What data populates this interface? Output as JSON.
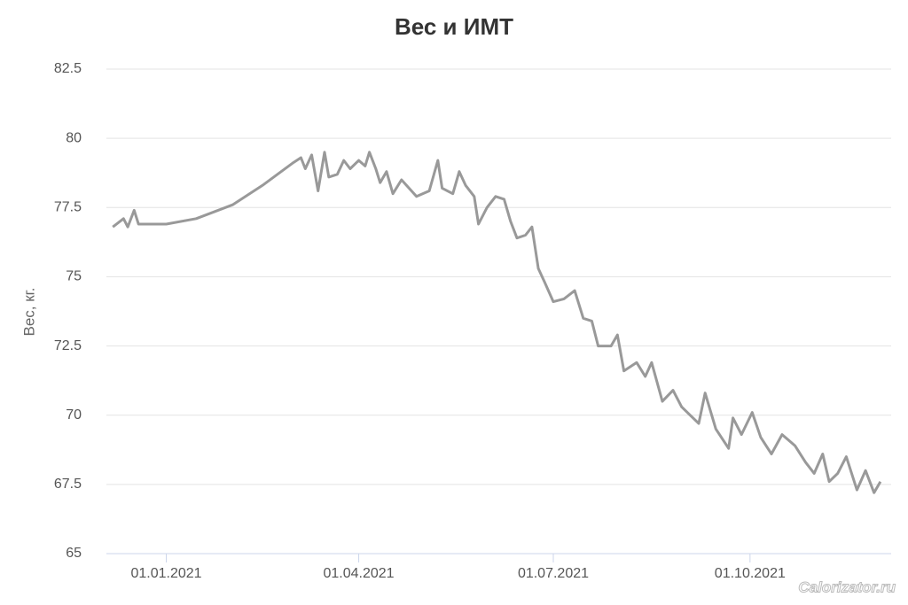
{
  "chart_data": {
    "type": "line",
    "title": "Вес и ИМТ",
    "y_label": "Вес, кг.",
    "watermark": "Calorizator.ru",
    "x": [
      "07.12.2020",
      "12.12.2020",
      "14.12.2020",
      "17.12.2020",
      "19.12.2020",
      "01.01.2021",
      "15.01.2021",
      "01.02.2021",
      "15.02.2021",
      "01.03.2021",
      "05.03.2021",
      "07.03.2021",
      "10.03.2021",
      "13.03.2021",
      "16.03.2021",
      "18.03.2021",
      "22.03.2021",
      "25.03.2021",
      "28.03.2021",
      "01.04.2021",
      "04.04.2021",
      "06.04.2021",
      "09.04.2021",
      "11.04.2021",
      "14.04.2021",
      "17.04.2021",
      "21.04.2021",
      "28.04.2021",
      "04.05.2021",
      "08.05.2021",
      "10.05.2021",
      "15.05.2021",
      "18.05.2021",
      "21.05.2021",
      "25.05.2021",
      "27.05.2021",
      "31.05.2021",
      "04.06.2021",
      "08.06.2021",
      "11.06.2021",
      "14.06.2021",
      "18.06.2021",
      "21.06.2021",
      "24.06.2021",
      "27.06.2021",
      "01.07.2021",
      "06.07.2021",
      "11.07.2021",
      "15.07.2021",
      "19.07.2021",
      "22.07.2021",
      "28.07.2021",
      "31.07.2021",
      "03.08.2021",
      "09.08.2021",
      "13.08.2021",
      "16.08.2021",
      "21.08.2021",
      "26.08.2021",
      "30.08.2021",
      "03.09.2021",
      "07.09.2021",
      "10.09.2021",
      "15.09.2021",
      "21.09.2021",
      "23.09.2021",
      "27.09.2021",
      "02.10.2021",
      "06.10.2021",
      "11.10.2021",
      "16.10.2021",
      "22.10.2021",
      "27.10.2021",
      "31.10.2021",
      "04.11.2021",
      "07.11.2021",
      "11.11.2021",
      "15.11.2021",
      "20.11.2021",
      "24.11.2021",
      "28.11.2021",
      "01.12.2021"
    ],
    "series": [
      {
        "color": "#999999",
        "values": [
          76.8,
          77.1,
          76.8,
          77.4,
          76.9,
          76.9,
          77.1,
          77.6,
          78.3,
          79.1,
          79.3,
          78.9,
          79.4,
          78.1,
          79.5,
          78.6,
          78.7,
          79.2,
          78.9,
          79.2,
          79.0,
          79.5,
          78.9,
          78.4,
          78.8,
          78.0,
          78.5,
          77.9,
          78.1,
          79.2,
          78.2,
          78.0,
          78.8,
          78.3,
          77.9,
          76.9,
          77.5,
          77.9,
          77.8,
          77.0,
          76.4,
          76.5,
          76.8,
          75.3,
          74.8,
          74.1,
          74.2,
          74.5,
          73.5,
          73.4,
          72.5,
          72.5,
          72.9,
          71.6,
          71.9,
          71.4,
          71.9,
          70.5,
          70.9,
          70.3,
          70.0,
          69.7,
          70.8,
          69.5,
          68.8,
          69.9,
          69.3,
          70.1,
          69.2,
          68.6,
          69.3,
          68.9,
          68.3,
          67.9,
          68.6,
          67.6,
          67.9,
          68.5,
          67.3,
          68.0,
          67.2,
          67.6
        ]
      }
    ],
    "xlim": [
      "04.12.2020",
      "06.12.2021"
    ],
    "xticks": [
      "01.01.2021",
      "01.04.2021",
      "01.07.2021",
      "01.10.2021"
    ],
    "ylim": [
      65,
      82.5
    ],
    "yticks": [
      65,
      67.5,
      70,
      72.5,
      75,
      77.5,
      80,
      82.5
    ],
    "grid": true
  }
}
